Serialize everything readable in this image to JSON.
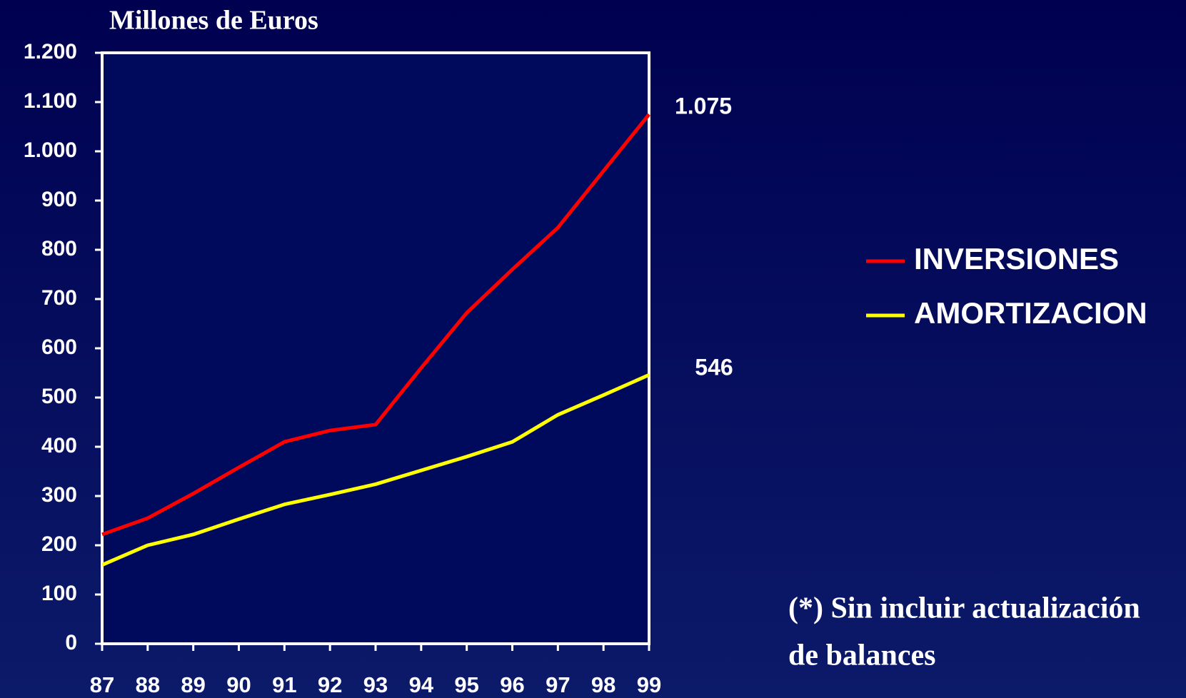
{
  "chart_data": {
    "type": "line",
    "title": "Millones de  Euros",
    "categories": [
      "87",
      "88",
      "89",
      "90",
      "91",
      "92",
      "93",
      "94",
      "95",
      "96",
      "97",
      "98",
      "99"
    ],
    "series": [
      {
        "name": "INVERSIONES",
        "color": "#ff0000",
        "values": [
          222,
          255,
          305,
          358,
          410,
          433,
          445,
          560,
          672,
          760,
          845,
          960,
          1075
        ],
        "value_labels": [
          null,
          null,
          null,
          null,
          null,
          null,
          null,
          null,
          null,
          null,
          null,
          null,
          "1.075"
        ]
      },
      {
        "name": "AMORTIZACION",
        "color": "#ffff00",
        "values": [
          160,
          200,
          222,
          253,
          283,
          303,
          324,
          352,
          380,
          410,
          465,
          505,
          546
        ],
        "value_labels": [
          null,
          null,
          null,
          null,
          null,
          null,
          null,
          null,
          null,
          null,
          null,
          null,
          "546"
        ]
      }
    ],
    "ylim": [
      0,
      1200
    ],
    "yticks": [
      0,
      100,
      200,
      300,
      400,
      500,
      600,
      700,
      800,
      900,
      {
        "value": 1000,
        "label": "1.000"
      },
      {
        "value": 1100,
        "label": "1.100"
      },
      {
        "value": 1200,
        "label": "1.200"
      }
    ],
    "legend": "right",
    "footnote": [
      "(*) Sin incluir actualización",
      "de balances"
    ]
  }
}
